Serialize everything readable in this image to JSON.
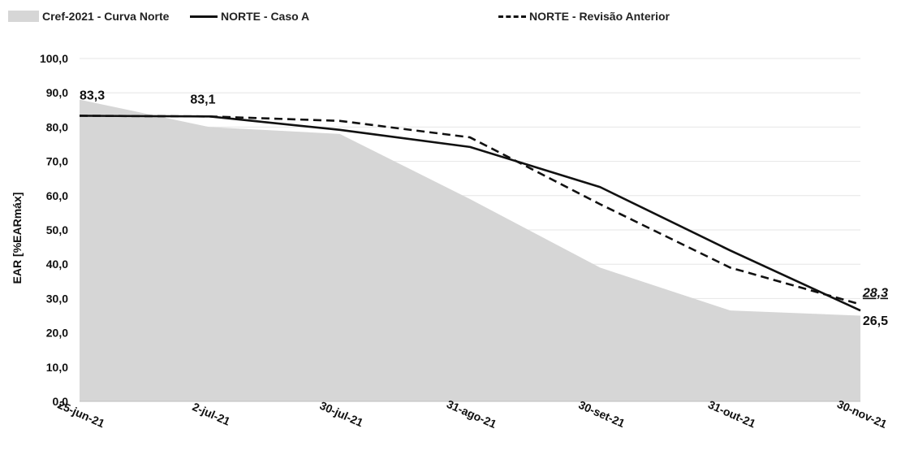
{
  "chart_data": {
    "type": "line",
    "title": "",
    "xlabel": "",
    "ylabel": "EAR [%EARmáx]",
    "ylim": [
      0,
      100
    ],
    "y_ticks": [
      "0,0",
      "10,0",
      "20,0",
      "30,0",
      "40,0",
      "50,0",
      "60,0",
      "70,0",
      "80,0",
      "90,0",
      "100,0"
    ],
    "categories": [
      "25-jun-21",
      "2-jul-21",
      "30-jul-21",
      "31-ago-21",
      "30-set-21",
      "31-out-21",
      "30-nov-21"
    ],
    "legend_position": "top",
    "series": [
      {
        "name": "Cref-2021 - Curva Norte",
        "kind": "area",
        "color": "#d6d6d6",
        "values": [
          88.0,
          80.0,
          78.0,
          59.0,
          39.0,
          26.5,
          25.0
        ]
      },
      {
        "name": "NORTE - Caso A",
        "kind": "line",
        "style": "solid",
        "color": "#111111",
        "values": [
          83.3,
          83.1,
          79.2,
          74.2,
          62.5,
          44.0,
          26.5
        ]
      },
      {
        "name": "NORTE - Revisão Anterior",
        "kind": "line",
        "style": "dashed",
        "color": "#111111",
        "values": [
          83.3,
          83.1,
          81.8,
          77.0,
          57.5,
          39.0,
          28.3
        ]
      }
    ],
    "data_labels": [
      {
        "text": "83,3",
        "category_index": 0,
        "series": 1
      },
      {
        "text": "83,1",
        "category_index": 1,
        "series": 1
      },
      {
        "text": "28,3",
        "category_index": 6,
        "series": 2,
        "emphasis": "italic-underline"
      },
      {
        "text": "26,5",
        "category_index": 6,
        "series": 1
      }
    ],
    "grid": true
  }
}
